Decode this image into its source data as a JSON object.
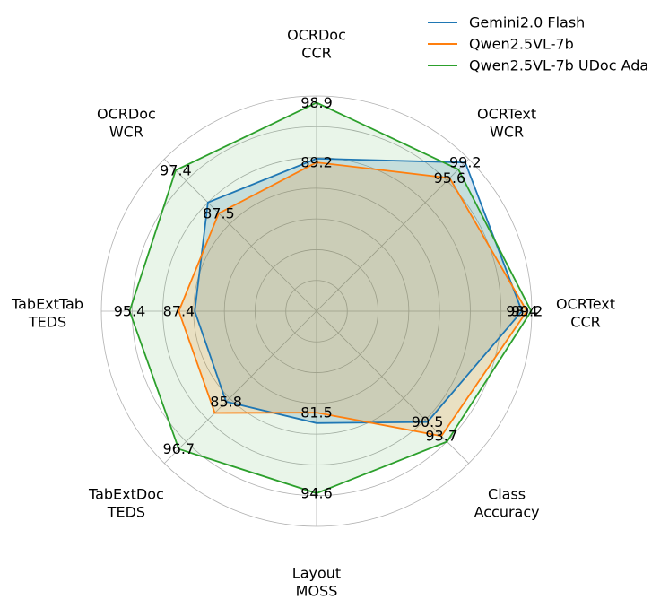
{
  "chart_data": {
    "type": "radar",
    "axes": [
      {
        "lines": [
          "OCRDoc",
          "CCR"
        ]
      },
      {
        "lines": [
          "OCRText",
          "WCR"
        ]
      },
      {
        "lines": [
          "OCRText",
          "CCR"
        ]
      },
      {
        "lines": [
          "Class",
          "Accuracy"
        ]
      },
      {
        "lines": [
          "Layout",
          "MOSS"
        ]
      },
      {
        "lines": [
          "TabExtDoc",
          "TEDS"
        ]
      },
      {
        "lines": [
          "TabExtTab",
          "TEDS"
        ]
      },
      {
        "lines": [
          "OCRDoc",
          "WCR"
        ]
      }
    ],
    "series": [
      {
        "name": "Gemini2.0 Flash",
        "color": "#1f77b4",
        "values": [
          89.8,
          99.2,
          98.4,
          90.5,
          83.2,
          85.8,
          84.8,
          90.0
        ]
      },
      {
        "name": "Qwen2.5VL-7b",
        "color": "#ff7f0e",
        "values": [
          89.2,
          95.6,
          99.2,
          93.7,
          81.5,
          88.4,
          87.4,
          87.5
        ]
      },
      {
        "name": "Qwen2.5VL-7b UDoc Ada",
        "color": "#2ca02c",
        "values": [
          98.9,
          97.6,
          99.9,
          95.0,
          94.6,
          96.7,
          95.4,
          97.4
        ],
        "fill": true
      }
    ],
    "value_labels": [
      {
        "axis": 0,
        "text": "98.9",
        "value": 98.9
      },
      {
        "axis": 0,
        "text": "89.2",
        "value": 89.2
      },
      {
        "axis": 1,
        "text": "99.2",
        "value": 99.2
      },
      {
        "axis": 1,
        "text": "95.6",
        "value": 95.6
      },
      {
        "axis": 2,
        "text": "99.2",
        "value": 99.2
      },
      {
        "axis": 2,
        "text": "98.4",
        "value": 98.4
      },
      {
        "axis": 3,
        "text": "90.5",
        "value": 90.5
      },
      {
        "axis": 3,
        "text": "93.7",
        "value": 93.7
      },
      {
        "axis": 4,
        "text": "94.6",
        "value": 94.6
      },
      {
        "axis": 4,
        "text": "81.5",
        "value": 81.5
      },
      {
        "axis": 5,
        "text": "96.7",
        "value": 96.7
      },
      {
        "axis": 5,
        "text": "85.8",
        "value": 85.8
      },
      {
        "axis": 6,
        "text": "95.4",
        "value": 95.4
      },
      {
        "axis": 6,
        "text": "87.4",
        "value": 87.4
      },
      {
        "axis": 7,
        "text": "97.4",
        "value": 97.4
      },
      {
        "axis": 7,
        "text": "87.5",
        "value": 87.5
      }
    ],
    "r_range": [
      65,
      100
    ],
    "grid": true,
    "legend_position": "top-right"
  }
}
